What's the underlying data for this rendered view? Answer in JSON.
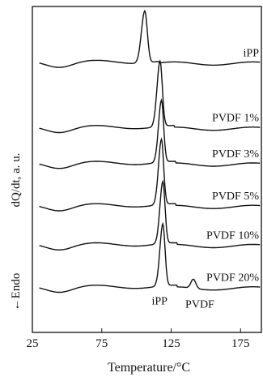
{
  "chart_data": {
    "type": "line",
    "xlabel": "Temperature/°C",
    "ylabel": "dQ/dt, a. u.",
    "endo_label": "←Endo",
    "xlim": [
      25,
      190
    ],
    "x_ticks": [
      "25",
      "75",
      "125",
      "175"
    ],
    "x_tick_values": [
      25,
      75,
      125,
      175
    ],
    "grid": false,
    "series": [
      {
        "name": "iPP",
        "baseline": 8.3,
        "peak_x": 106,
        "peak_height": 1.6,
        "peak_width": 3.0,
        "second_peak_x": null
      },
      {
        "name": "PVDF 1%",
        "baseline": 6.3,
        "peak_x": 117,
        "peak_height": 2.0,
        "peak_width": 2.7,
        "second_peak_x": null
      },
      {
        "name": "PVDF 3%",
        "baseline": 5.2,
        "peak_x": 118,
        "peak_height": 1.9,
        "peak_width": 2.6,
        "second_peak_x": null
      },
      {
        "name": "PVDF 5%",
        "baseline": 3.9,
        "peak_x": 118,
        "peak_height": 2.0,
        "peak_width": 2.6,
        "second_peak_x": null
      },
      {
        "name": "PVDF 10%",
        "baseline": 2.7,
        "peak_x": 119,
        "peak_height": 1.9,
        "peak_width": 2.6,
        "second_peak_x": null
      },
      {
        "name": "PVDF 20%",
        "baseline": 1.4,
        "peak_x": 119,
        "peak_height": 1.9,
        "peak_width": 2.6,
        "second_peak_x": 141
      }
    ],
    "annotations": [
      {
        "text": "iPP",
        "x": 119
      },
      {
        "text": "PVDF",
        "x": 141
      }
    ]
  }
}
